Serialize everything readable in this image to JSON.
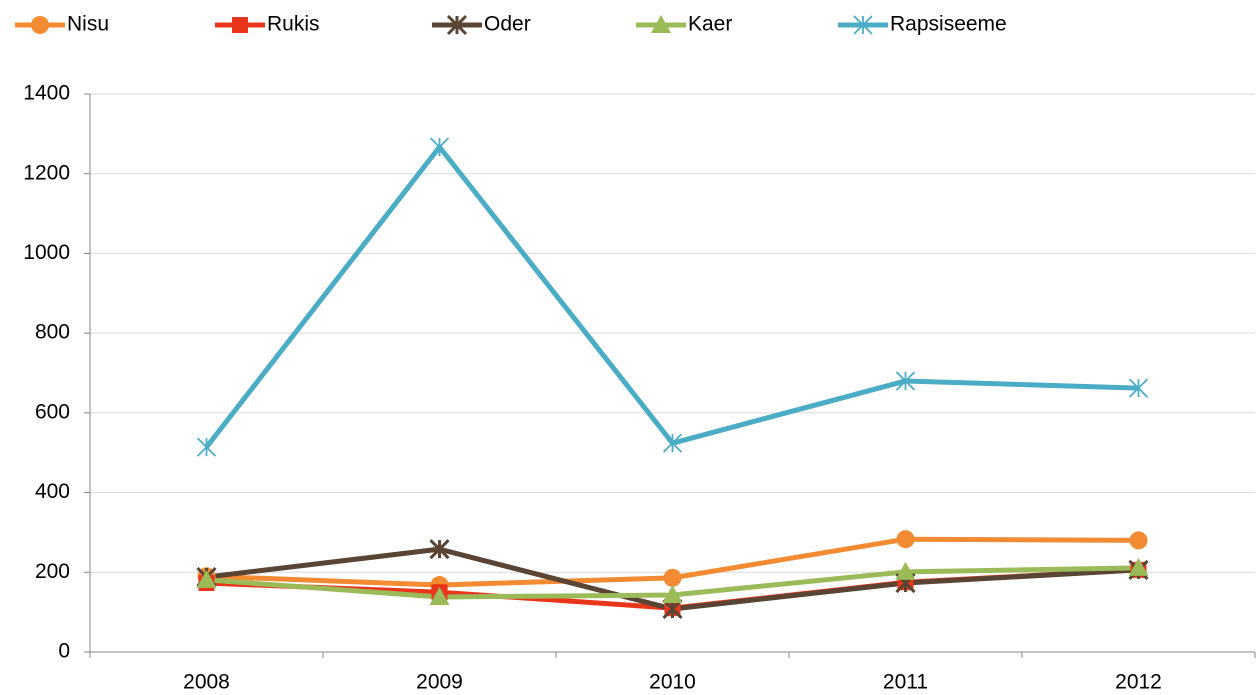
{
  "chart_data": {
    "type": "line",
    "categories": [
      "2008",
      "2009",
      "2010",
      "2011",
      "2012"
    ],
    "series": [
      {
        "name": "Nisu",
        "color": "#f38b33",
        "marker": "circle",
        "values": [
          190,
          168,
          186,
          283,
          280
        ]
      },
      {
        "name": "Rukis",
        "color": "#e8351c",
        "marker": "square",
        "values": [
          173,
          150,
          110,
          175,
          206
        ]
      },
      {
        "name": "Oder",
        "color": "#5a4535",
        "marker": "star",
        "values": [
          188,
          258,
          108,
          173,
          206
        ]
      },
      {
        "name": "Kaer",
        "color": "#9bbb59",
        "marker": "triangle",
        "values": [
          181,
          138,
          143,
          201,
          211
        ]
      },
      {
        "name": "Rapsiseeme",
        "color": "#4bacc6",
        "marker": "star",
        "values": [
          514,
          1267,
          524,
          680,
          662
        ]
      }
    ],
    "ylim": [
      0,
      1400
    ],
    "yticks": [
      0,
      200,
      400,
      600,
      800,
      1000,
      1200,
      1400
    ],
    "grid": true,
    "legend": "top"
  }
}
